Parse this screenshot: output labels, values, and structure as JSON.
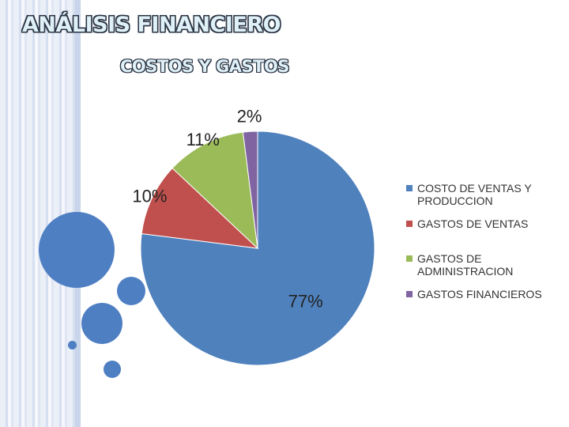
{
  "header": {
    "title": "ANÁLISIS FINANCIERO",
    "subtitle": "COSTOS Y GASTOS"
  },
  "chart_data": {
    "type": "pie",
    "categories": [
      "COSTO DE VENTAS Y PRODUCCION",
      "GASTOS DE VENTAS",
      "GASTOS DE ADMINISTRACION",
      "GASTOS FINANCIEROS"
    ],
    "values": [
      77,
      10,
      11,
      2
    ],
    "data_labels": [
      "77%",
      "10%",
      "11%",
      "2%"
    ],
    "colors": [
      "#4f81bd",
      "#c0504d",
      "#9bbb59",
      "#8064a2"
    ],
    "legend": "right",
    "start": "top",
    "direction": "clockwise"
  }
}
